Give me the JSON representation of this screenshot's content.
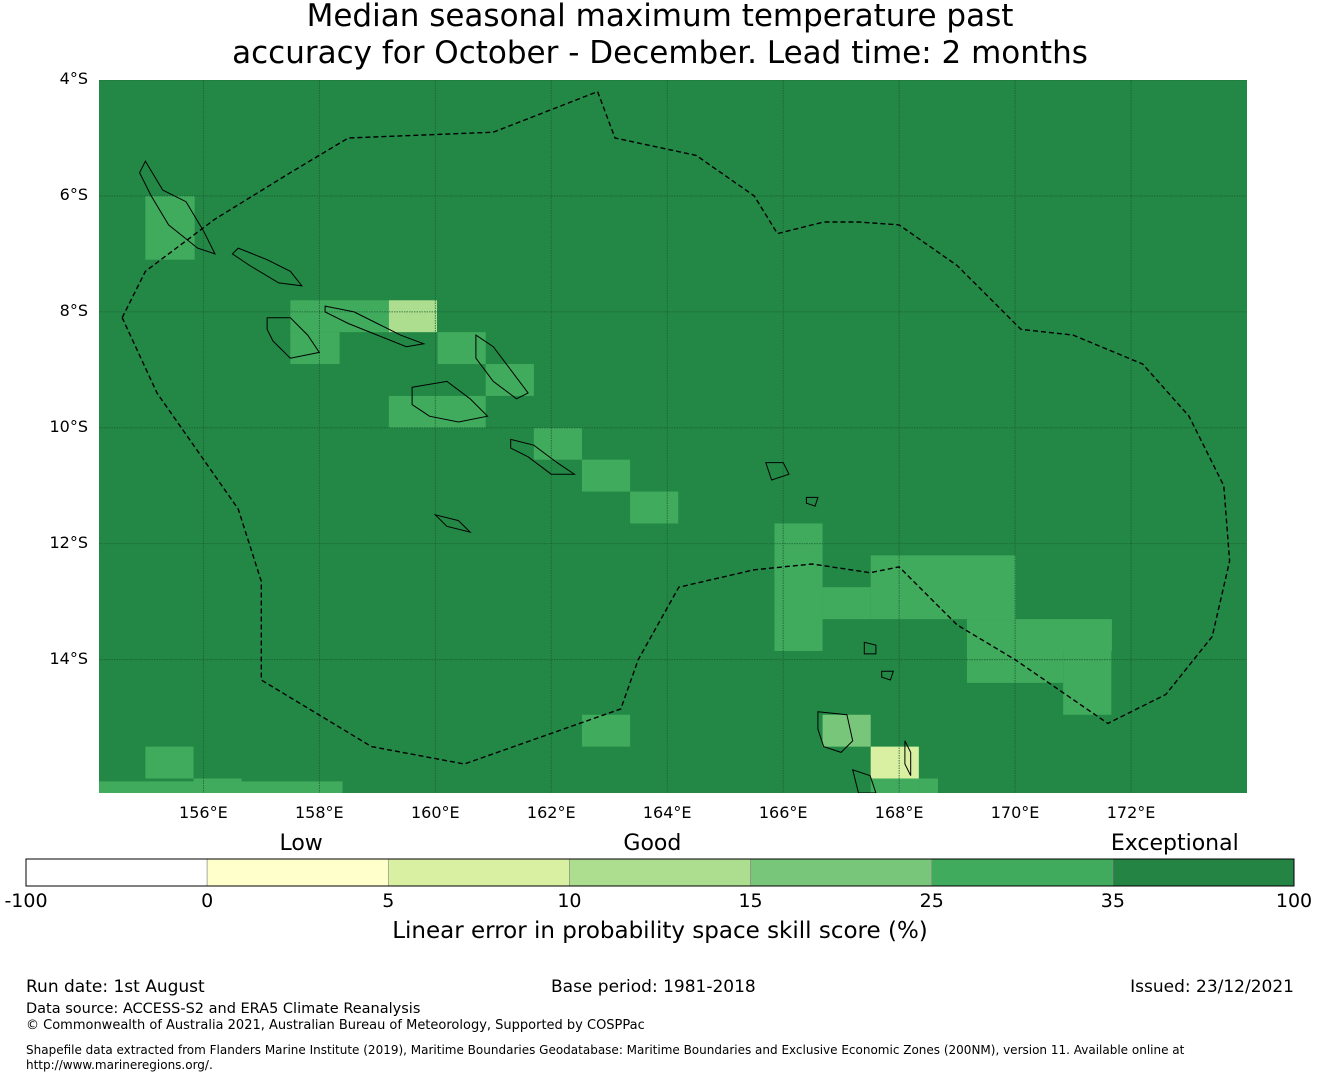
{
  "title": {
    "line1": "Median seasonal maximum temperature past",
    "line2": "accuracy for October - December. Lead time: 2 months"
  },
  "map": {
    "extent": {
      "lon_min": 154.2,
      "lon_max": 174.0,
      "lat_min": -16.3,
      "lat_max": -4.0
    },
    "lat_ticks": [
      {
        "lat": -4,
        "label": "4°S"
      },
      {
        "lat": -6,
        "label": "6°S"
      },
      {
        "lat": -8,
        "label": "8°S"
      },
      {
        "lat": -10,
        "label": "10°S"
      },
      {
        "lat": -12,
        "label": "12°S"
      },
      {
        "lat": -14,
        "label": "14°S"
      }
    ],
    "lon_ticks": [
      {
        "lon": 156,
        "label": "156°E"
      },
      {
        "lon": 158,
        "label": "158°E"
      },
      {
        "lon": 160,
        "label": "160°E"
      },
      {
        "lon": 162,
        "label": "162°E"
      },
      {
        "lon": 164,
        "label": "164°E"
      },
      {
        "lon": 166,
        "label": "166°E"
      },
      {
        "lon": 168,
        "label": "168°E"
      },
      {
        "lon": 170,
        "label": "170°E"
      },
      {
        "lon": 172,
        "label": "172°E"
      }
    ],
    "background_color": "#238845",
    "cells_note_category_colors": "25-35 -> #41ab5d, 15-25 -> #78c679, 10-15 -> #addd8e, 5-10 -> #d9f0a3",
    "cells": [
      {
        "lon": 155.0,
        "lat": -6.0,
        "w": 0.85,
        "h": 1.1,
        "color": "#41ab5d"
      },
      {
        "lon": 157.5,
        "lat": -7.8,
        "w": 1.7,
        "h": 0.55,
        "color": "#41ab5d"
      },
      {
        "lon": 157.5,
        "lat": -8.35,
        "w": 0.85,
        "h": 0.55,
        "color": "#41ab5d"
      },
      {
        "lon": 159.2,
        "lat": -7.8,
        "w": 0.83,
        "h": 0.55,
        "color": "#addd8e"
      },
      {
        "lon": 160.04,
        "lat": -8.35,
        "w": 0.83,
        "h": 0.55,
        "color": "#41ab5d"
      },
      {
        "lon": 160.87,
        "lat": -8.9,
        "w": 0.83,
        "h": 0.55,
        "color": "#41ab5d"
      },
      {
        "lon": 159.2,
        "lat": -9.45,
        "w": 1.67,
        "h": 0.55,
        "color": "#41ab5d"
      },
      {
        "lon": 161.7,
        "lat": -10.0,
        "w": 0.83,
        "h": 0.55,
        "color": "#41ab5d"
      },
      {
        "lon": 162.53,
        "lat": -10.55,
        "w": 0.83,
        "h": 0.55,
        "color": "#41ab5d"
      },
      {
        "lon": 163.36,
        "lat": -11.1,
        "w": 0.83,
        "h": 0.55,
        "color": "#41ab5d"
      },
      {
        "lon": 165.85,
        "lat": -11.65,
        "w": 0.83,
        "h": 2.2,
        "color": "#41ab5d"
      },
      {
        "lon": 166.68,
        "lat": -12.75,
        "w": 0.83,
        "h": 0.55,
        "color": "#41ab5d"
      },
      {
        "lon": 167.51,
        "lat": -12.2,
        "w": 2.5,
        "h": 1.1,
        "color": "#41ab5d"
      },
      {
        "lon": 169.17,
        "lat": -13.3,
        "w": 2.5,
        "h": 0.55,
        "color": "#41ab5d"
      },
      {
        "lon": 169.17,
        "lat": -13.85,
        "w": 1.66,
        "h": 0.55,
        "color": "#41ab5d"
      },
      {
        "lon": 170.83,
        "lat": -13.85,
        "w": 0.83,
        "h": 1.1,
        "color": "#41ab5d"
      },
      {
        "lon": 162.53,
        "lat": -14.95,
        "w": 0.83,
        "h": 0.55,
        "color": "#41ab5d"
      },
      {
        "lon": 166.68,
        "lat": -14.95,
        "w": 0.83,
        "h": 0.55,
        "color": "#78c679"
      },
      {
        "lon": 167.51,
        "lat": -15.5,
        "w": 0.83,
        "h": 0.55,
        "color": "#d9f0a3"
      },
      {
        "lon": 167.51,
        "lat": -16.05,
        "w": 0.83,
        "h": 0.25,
        "color": "#41ab5d"
      },
      {
        "lon": 168.34,
        "lat": -16.05,
        "w": 0.33,
        "h": 0.25,
        "color": "#41ab5d"
      },
      {
        "lon": 155.0,
        "lat": -15.5,
        "w": 0.83,
        "h": 0.55,
        "color": "#41ab5d"
      },
      {
        "lon": 155.83,
        "lat": -16.05,
        "w": 0.83,
        "h": 0.25,
        "color": "#41ab5d"
      },
      {
        "lon": 154.2,
        "lat": -16.1,
        "w": 4.2,
        "h": 0.2,
        "color": "#41ab5d"
      }
    ],
    "eez_boundary": [
      [
        154.6,
        -8.1
      ],
      [
        155.0,
        -7.3
      ],
      [
        156.2,
        -6.4
      ],
      [
        157.5,
        -5.6
      ],
      [
        158.5,
        -5.0
      ],
      [
        161.0,
        -4.9
      ],
      [
        162.8,
        -4.2
      ],
      [
        163.1,
        -5.0
      ],
      [
        164.5,
        -5.3
      ],
      [
        165.5,
        -6.0
      ],
      [
        165.9,
        -6.65
      ],
      [
        166.7,
        -6.45
      ],
      [
        167.3,
        -6.45
      ],
      [
        168.0,
        -6.5
      ],
      [
        169.0,
        -7.2
      ],
      [
        170.1,
        -8.3
      ],
      [
        171.0,
        -8.4
      ],
      [
        172.2,
        -8.9
      ],
      [
        173.0,
        -9.8
      ],
      [
        173.6,
        -11.0
      ],
      [
        173.7,
        -12.3
      ],
      [
        173.4,
        -13.6
      ],
      [
        172.6,
        -14.6
      ],
      [
        171.6,
        -15.1
      ],
      [
        170.0,
        -14.0
      ],
      [
        169.0,
        -13.4
      ],
      [
        168.0,
        -12.4
      ],
      [
        167.5,
        -12.5
      ],
      [
        166.5,
        -12.35
      ],
      [
        165.5,
        -12.45
      ],
      [
        164.2,
        -12.75
      ],
      [
        163.5,
        -14.0
      ],
      [
        163.2,
        -14.85
      ],
      [
        160.5,
        -15.8
      ],
      [
        158.9,
        -15.5
      ],
      [
        157.0,
        -14.35
      ],
      [
        157.0,
        -12.65
      ],
      [
        156.6,
        -11.4
      ],
      [
        155.2,
        -9.4
      ],
      [
        154.6,
        -8.1
      ]
    ],
    "islands": [
      {
        "name": "bougainville",
        "pts": [
          [
            155.0,
            -5.4
          ],
          [
            155.3,
            -5.9
          ],
          [
            155.7,
            -6.1
          ],
          [
            156.0,
            -6.6
          ],
          [
            156.2,
            -7.0
          ],
          [
            155.9,
            -6.9
          ],
          [
            155.4,
            -6.5
          ],
          [
            155.1,
            -6.0
          ],
          [
            154.9,
            -5.6
          ]
        ]
      },
      {
        "name": "choiseul",
        "pts": [
          [
            156.6,
            -6.9
          ],
          [
            157.1,
            -7.1
          ],
          [
            157.5,
            -7.3
          ],
          [
            157.7,
            -7.55
          ],
          [
            157.3,
            -7.5
          ],
          [
            156.8,
            -7.2
          ],
          [
            156.5,
            -7.0
          ]
        ]
      },
      {
        "name": "santa-isabel",
        "pts": [
          [
            158.1,
            -7.9
          ],
          [
            158.6,
            -8.0
          ],
          [
            159.0,
            -8.2
          ],
          [
            159.4,
            -8.4
          ],
          [
            159.8,
            -8.55
          ],
          [
            159.5,
            -8.6
          ],
          [
            159.0,
            -8.4
          ],
          [
            158.5,
            -8.2
          ],
          [
            158.1,
            -8.0
          ]
        ]
      },
      {
        "name": "new-georgia",
        "pts": [
          [
            157.1,
            -8.1
          ],
          [
            157.5,
            -8.1
          ],
          [
            157.8,
            -8.4
          ],
          [
            158.0,
            -8.7
          ],
          [
            157.5,
            -8.8
          ],
          [
            157.2,
            -8.5
          ],
          [
            157.1,
            -8.3
          ]
        ]
      },
      {
        "name": "malaita",
        "pts": [
          [
            160.7,
            -8.4
          ],
          [
            161.0,
            -8.6
          ],
          [
            161.3,
            -9.0
          ],
          [
            161.6,
            -9.4
          ],
          [
            161.4,
            -9.5
          ],
          [
            161.0,
            -9.2
          ],
          [
            160.7,
            -8.8
          ]
        ]
      },
      {
        "name": "guadalcanal",
        "pts": [
          [
            159.6,
            -9.3
          ],
          [
            160.2,
            -9.2
          ],
          [
            160.6,
            -9.5
          ],
          [
            160.9,
            -9.8
          ],
          [
            160.4,
            -9.9
          ],
          [
            159.9,
            -9.8
          ],
          [
            159.6,
            -9.6
          ]
        ]
      },
      {
        "name": "makira",
        "pts": [
          [
            161.3,
            -10.2
          ],
          [
            161.7,
            -10.3
          ],
          [
            162.1,
            -10.6
          ],
          [
            162.4,
            -10.8
          ],
          [
            162.0,
            -10.8
          ],
          [
            161.6,
            -10.5
          ],
          [
            161.3,
            -10.35
          ]
        ]
      },
      {
        "name": "rennell",
        "pts": [
          [
            160.0,
            -11.5
          ],
          [
            160.4,
            -11.6
          ],
          [
            160.6,
            -11.8
          ],
          [
            160.2,
            -11.7
          ]
        ]
      },
      {
        "name": "santa-cruz",
        "pts": [
          [
            165.7,
            -10.6
          ],
          [
            166.0,
            -10.6
          ],
          [
            166.1,
            -10.8
          ],
          [
            165.8,
            -10.9
          ]
        ]
      },
      {
        "name": "espiritu-santo",
        "pts": [
          [
            166.6,
            -14.9
          ],
          [
            167.1,
            -14.95
          ],
          [
            167.2,
            -15.4
          ],
          [
            167.0,
            -15.6
          ],
          [
            166.7,
            -15.5
          ],
          [
            166.6,
            -15.2
          ]
        ]
      },
      {
        "name": "malakula",
        "pts": [
          [
            167.2,
            -15.9
          ],
          [
            167.5,
            -16.0
          ],
          [
            167.6,
            -16.3
          ],
          [
            167.3,
            -16.3
          ]
        ]
      },
      {
        "name": "pentecost",
        "pts": [
          [
            168.1,
            -15.4
          ],
          [
            168.2,
            -15.6
          ],
          [
            168.2,
            -16.0
          ],
          [
            168.1,
            -15.8
          ]
        ]
      },
      {
        "name": "vanua-lava",
        "pts": [
          [
            167.4,
            -13.7
          ],
          [
            167.6,
            -13.75
          ],
          [
            167.6,
            -13.9
          ],
          [
            167.4,
            -13.9
          ]
        ]
      },
      {
        "name": "small-1",
        "pts": [
          [
            166.4,
            -11.2
          ],
          [
            166.6,
            -11.2
          ],
          [
            166.55,
            -11.35
          ],
          [
            166.4,
            -11.3
          ]
        ]
      },
      {
        "name": "small-2",
        "pts": [
          [
            167.7,
            -14.2
          ],
          [
            167.9,
            -14.2
          ],
          [
            167.85,
            -14.35
          ],
          [
            167.7,
            -14.3
          ]
        ]
      }
    ]
  },
  "colorbar": {
    "categories": [
      {
        "label": "Low",
        "center_fraction": 0.217
      },
      {
        "label": "Good",
        "center_fraction": 0.494
      },
      {
        "label": "Exceptional",
        "center_fraction": 0.906
      }
    ],
    "bins": [
      {
        "color": "#ffffff"
      },
      {
        "color": "#ffffcc"
      },
      {
        "color": "#d9f0a3"
      },
      {
        "color": "#addd8e"
      },
      {
        "color": "#78c679"
      },
      {
        "color": "#41ab5d"
      },
      {
        "color": "#238443"
      }
    ],
    "ticks": [
      "-100",
      "0",
      "5",
      "10",
      "15",
      "25",
      "35",
      "100"
    ],
    "title": "Linear error in probability space skill score (%)"
  },
  "footer": {
    "run_date": "Run date: 1st August",
    "base_period": "Base period: 1981-2018",
    "issued": "Issued: 23/12/2021",
    "data_source": "Data source: ACCESS-S2 and ERA5 Climate Reanalysis",
    "copyright": "© Commonwealth of Australia 2021, Australian Bureau of Meteorology, Supported by COSPPac",
    "shapefile": "Shapefile data extracted from Flanders Marine Institute (2019), Maritime Boundaries Geodatabase: Maritime Boundaries and Exclusive Economic Zones (200NM), version 11. Available online at",
    "url": "http://www.marineregions.org/."
  }
}
